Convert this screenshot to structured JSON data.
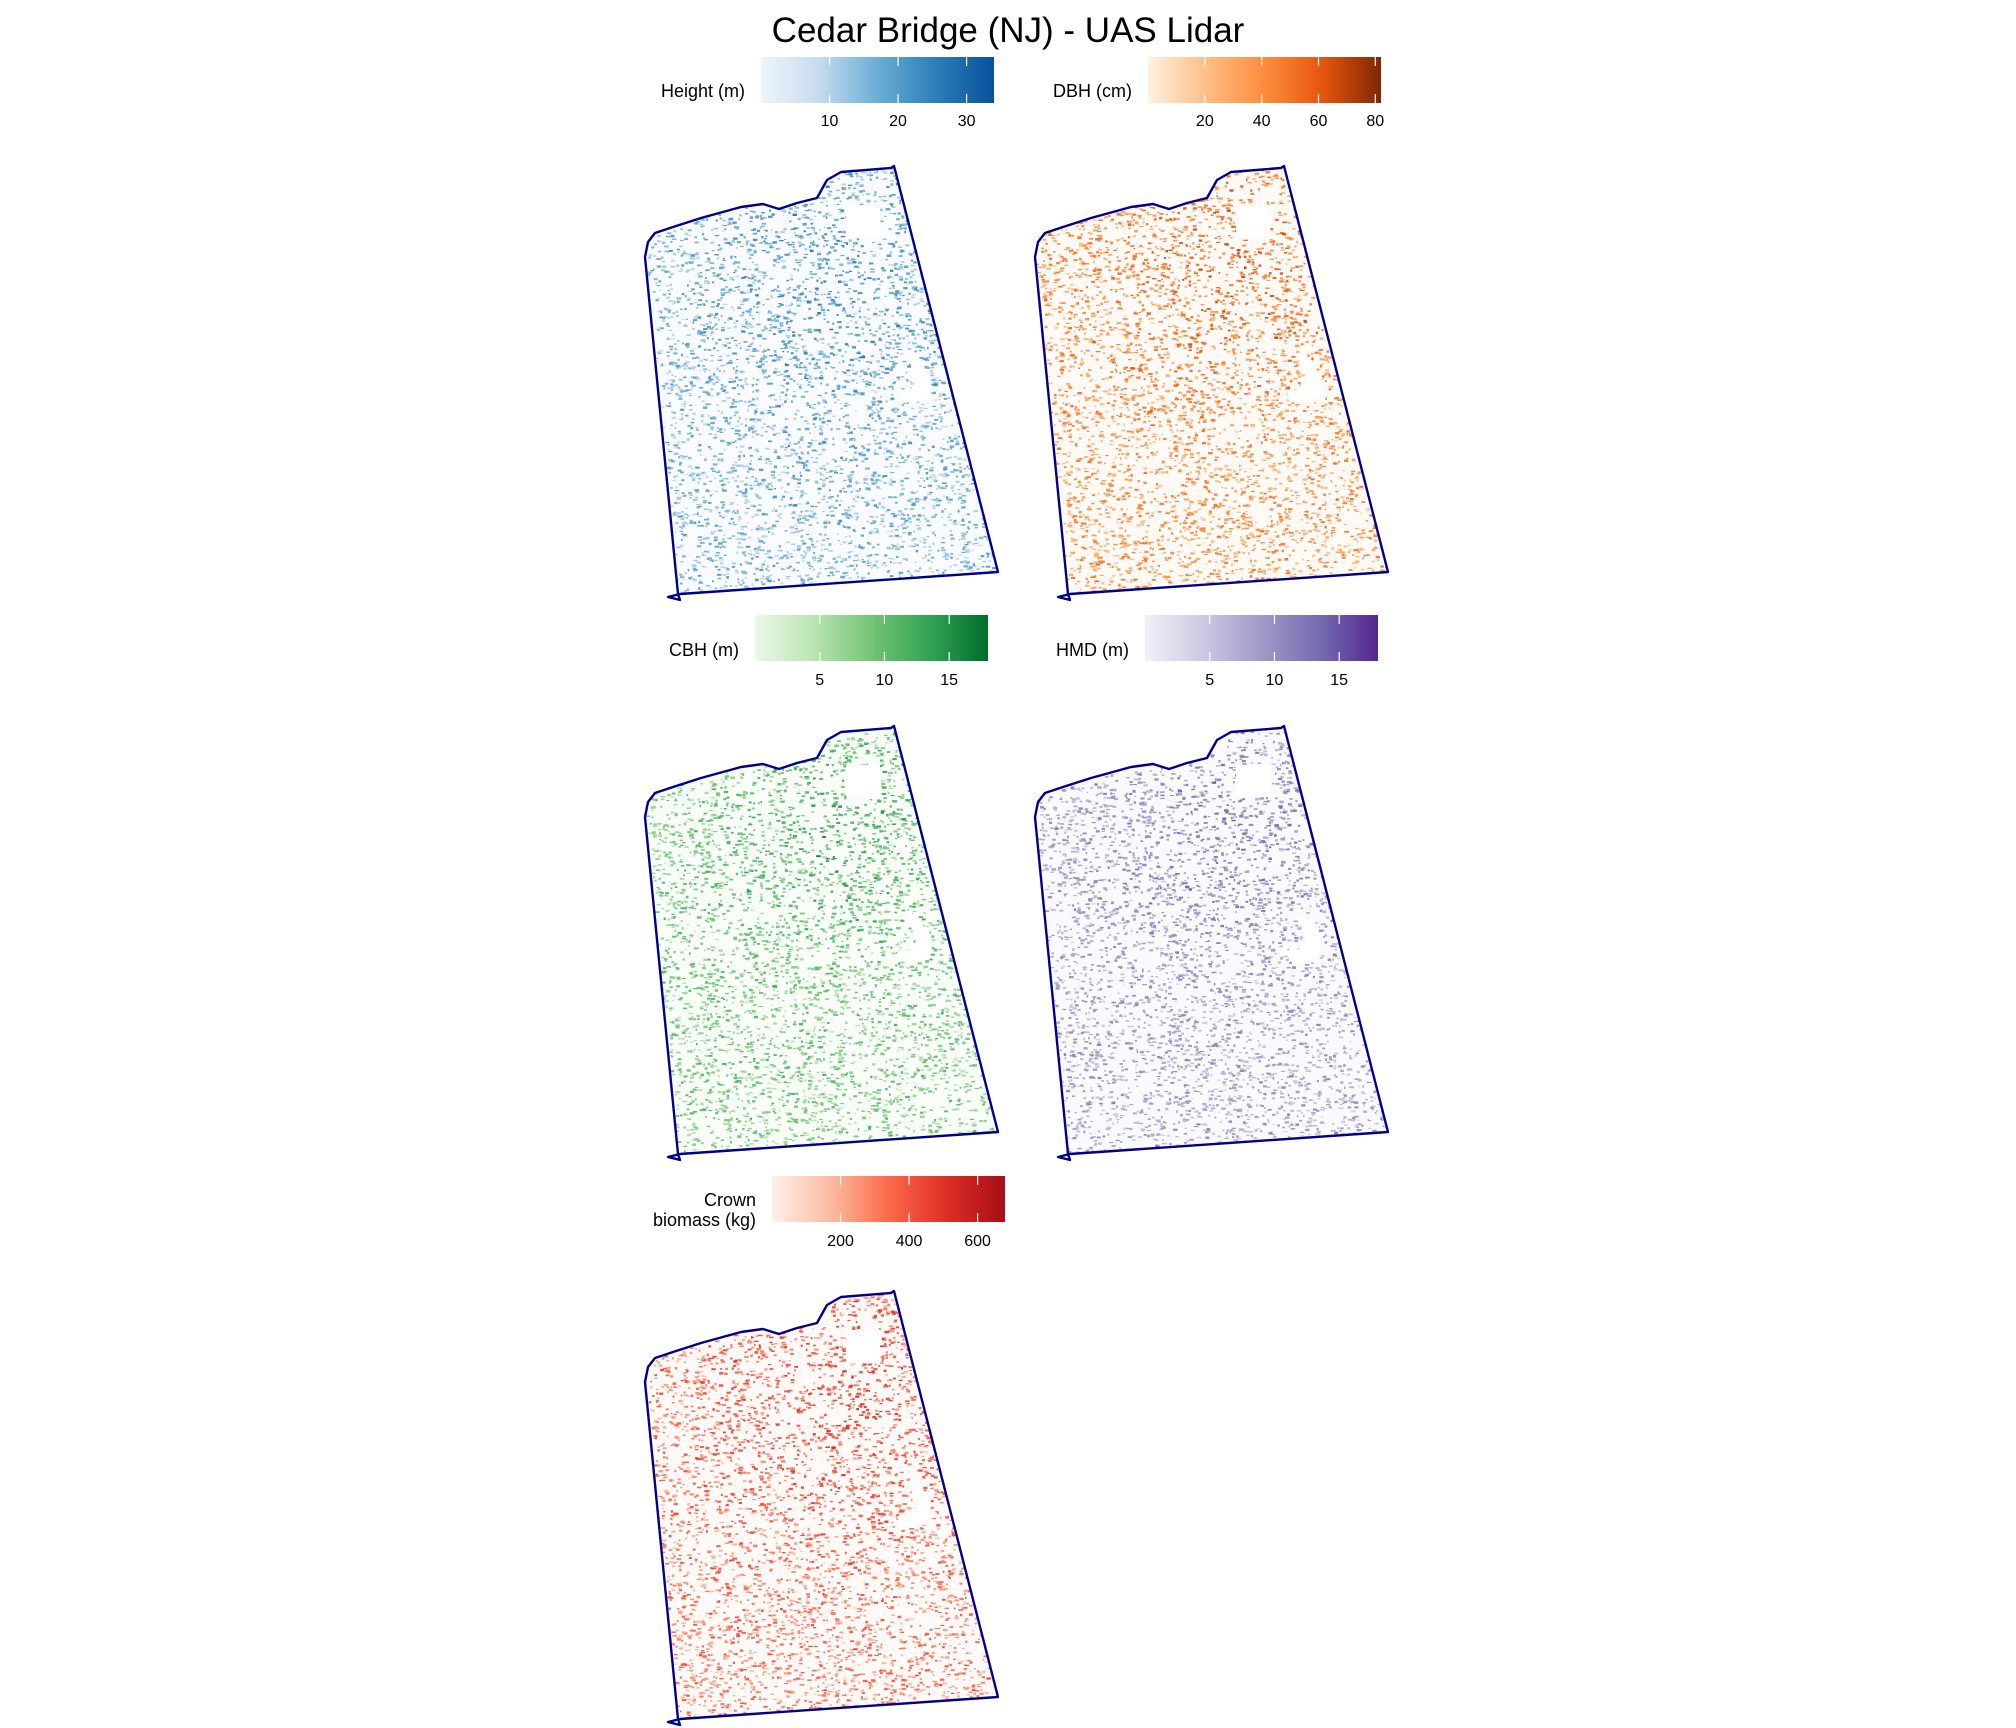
{
  "title": "Cedar Bridge (NJ) - UAS Lidar",
  "boundary_color": "#00008b",
  "panels": [
    {
      "id": "height",
      "legend_label": [
        "Height (m)"
      ],
      "colors": [
        "#eef4fb",
        "#c6dbef",
        "#6baed6",
        "#2c7fb8",
        "#08519c"
      ],
      "scale_range": [
        0,
        34
      ],
      "ticks": [
        10,
        20,
        30
      ],
      "tick_labels": [
        "10",
        "20",
        "30"
      ]
    },
    {
      "id": "dbh",
      "legend_label": [
        "DBH (cm)"
      ],
      "colors": [
        "#fff1e3",
        "#fdbe85",
        "#fd8d3c",
        "#e6550d",
        "#7f2704"
      ],
      "scale_range": [
        0,
        82
      ],
      "ticks": [
        20,
        40,
        60,
        80
      ],
      "tick_labels": [
        "20",
        "40",
        "60",
        "80"
      ]
    },
    {
      "id": "cbh",
      "legend_label": [
        "CBH (m)"
      ],
      "colors": [
        "#edf8e9",
        "#bae4b3",
        "#74c476",
        "#31a354",
        "#006d2c"
      ],
      "scale_range": [
        0,
        18
      ],
      "ticks": [
        5,
        10,
        15
      ],
      "tick_labels": [
        "5",
        "10",
        "15"
      ]
    },
    {
      "id": "hmd",
      "legend_label": [
        "HMD (m)"
      ],
      "colors": [
        "#f2f0f7",
        "#cbc9e2",
        "#9e9ac8",
        "#756bb1",
        "#54278f"
      ],
      "scale_range": [
        0,
        18
      ],
      "ticks": [
        5,
        10,
        15
      ],
      "tick_labels": [
        "5",
        "10",
        "15"
      ]
    },
    {
      "id": "crown-biomass",
      "legend_label": [
        "Crown",
        "biomass (kg)"
      ],
      "colors": [
        "#fff0ea",
        "#fcbba1",
        "#fb6a4a",
        "#de2d26",
        "#a50f15"
      ],
      "scale_range": [
        0,
        680
      ],
      "ticks": [
        200,
        400,
        600
      ],
      "tick_labels": [
        "200",
        "400",
        "600"
      ]
    }
  ]
}
